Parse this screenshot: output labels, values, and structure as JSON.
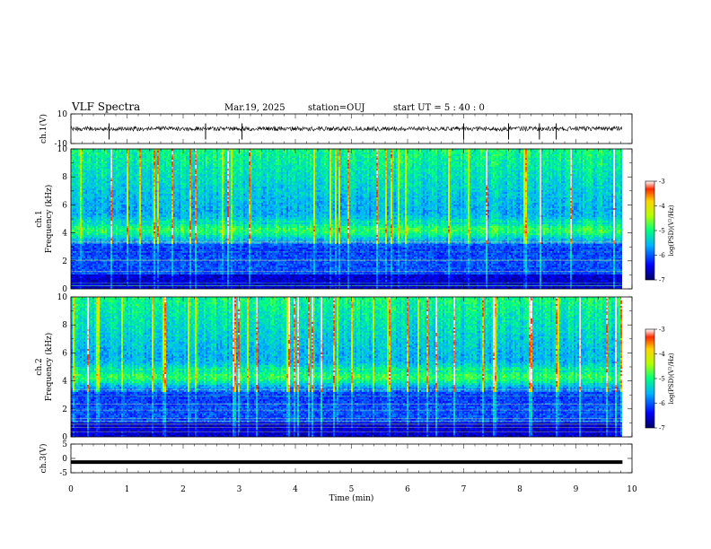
{
  "header": {
    "title": "VLF Spectra",
    "date": "Mar.19, 2025",
    "station": "station=OUJ",
    "start_ut": "start  UT =  5 : 40 : 0"
  },
  "chart_data": [
    {
      "type": "line",
      "panel": "ch1-waveform",
      "ylabel": "ch.1(V)",
      "ylim": [
        -10,
        10
      ],
      "yticks": [
        "10",
        "-10"
      ],
      "x_range_min": [
        0,
        9.83
      ],
      "baseline_v": 0,
      "approx_amplitude_v": 1.5,
      "spikes_at_min": [
        0.68,
        2.4,
        3.05,
        7.0,
        7.8,
        8.35,
        8.65
      ]
    },
    {
      "type": "heatmap",
      "panel": "ch1-spectrogram",
      "ylabel": "ch.1\nFrequency (kHz)",
      "ylim": [
        0,
        10
      ],
      "yticks": [
        "0",
        "2",
        "4",
        "6",
        "8",
        "10"
      ],
      "x_range_min": [
        0,
        9.83
      ],
      "colorbar": {
        "label": "log(PSD)(V²/Hz)",
        "range": [
          -7,
          -3
        ],
        "ticks": [
          "-3",
          "-4",
          "-5",
          "-6",
          "-7"
        ]
      },
      "band_peak_khz": 4.2
    },
    {
      "type": "heatmap",
      "panel": "ch2-spectrogram",
      "ylabel": "ch.2\nFrequency (kHz)",
      "ylim": [
        0,
        10
      ],
      "yticks": [
        "0",
        "2",
        "4",
        "6",
        "8",
        "10"
      ],
      "x_range_min": [
        0,
        9.83
      ],
      "colorbar": {
        "label": "log(PSD)(V²/Hz)",
        "range": [
          -7,
          -3
        ],
        "ticks": [
          "-3",
          "-4",
          "-5",
          "-6",
          "-7"
        ]
      },
      "band_peak_khz": 4.3
    },
    {
      "type": "line",
      "panel": "ch3-waveform",
      "ylabel": "ch.3(V)",
      "ylim": [
        -5,
        5
      ],
      "yticks": [
        "5",
        "0",
        "-5"
      ],
      "x_range_min": [
        0,
        9.83
      ],
      "baseline_v": -1.3
    }
  ],
  "xaxis": {
    "label": "Time (min)",
    "ticks": [
      "0",
      "1",
      "2",
      "3",
      "4",
      "5",
      "6",
      "7",
      "8",
      "9",
      "10"
    ],
    "xlim": [
      0,
      10
    ]
  }
}
